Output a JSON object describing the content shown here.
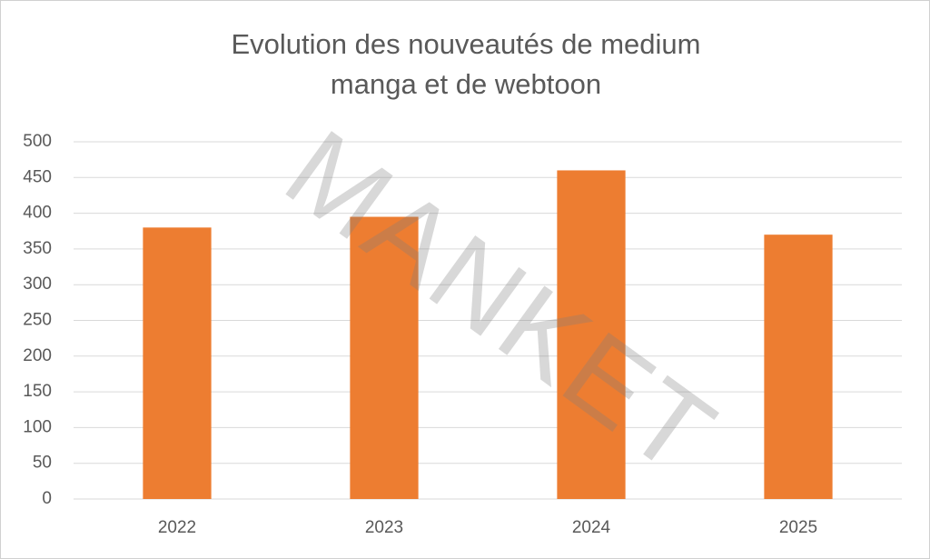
{
  "chart_data": {
    "type": "bar",
    "title": "Evolution des nouveautés de medium manga et de webtoon",
    "watermark": "MANKET",
    "categories": [
      "2022",
      "2023",
      "2024",
      "2025"
    ],
    "values": [
      380,
      395,
      460,
      370
    ],
    "color": "#ed7d31",
    "ylim": [
      0,
      500
    ],
    "yticks": [
      0,
      50,
      100,
      150,
      200,
      250,
      300,
      350,
      400,
      450,
      500
    ],
    "grid": true
  }
}
